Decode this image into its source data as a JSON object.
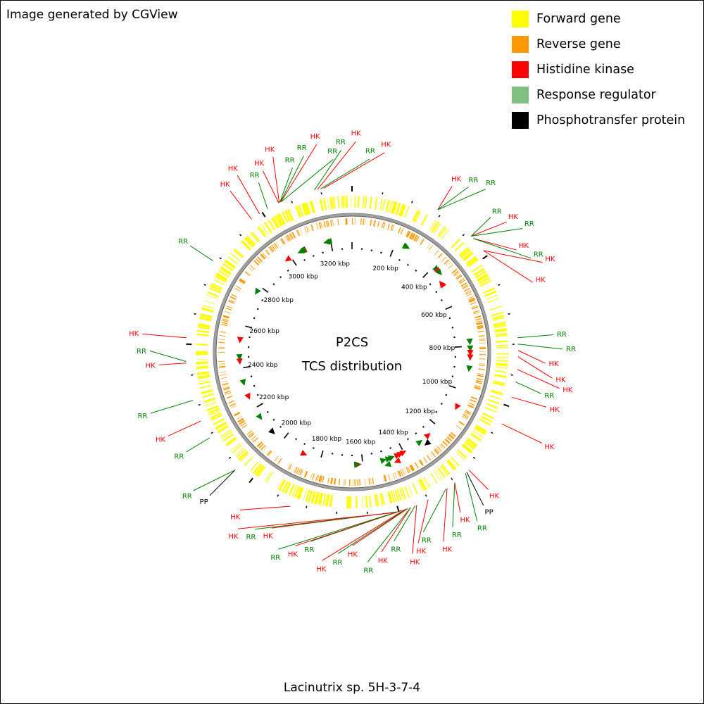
{
  "credit": "Image generated by CGView",
  "legend": [
    {
      "label": "Forward gene",
      "color": "#ffff00"
    },
    {
      "label": "Reverse gene",
      "color": "#ff9900"
    },
    {
      "label": "Histidine kinase",
      "color": "#ff0000"
    },
    {
      "label": "Response regulator",
      "color": "#7fbf7f"
    },
    {
      "label": "Phosphotransfer protein",
      "color": "#000000"
    }
  ],
  "center_title": "P2CS",
  "center_subtitle": "TCS distribution",
  "organism": "Lacinutrix sp. 5H-3-7-4",
  "genome": {
    "length_kbp": 3300,
    "ticks": [
      {
        "label": "200 kbp",
        "kbp": 200
      },
      {
        "label": "400 kbp",
        "kbp": 400
      },
      {
        "label": "600 kbp",
        "kbp": 600
      },
      {
        "label": "800 kbp",
        "kbp": 800
      },
      {
        "label": "1000 kbp",
        "kbp": 1000
      },
      {
        "label": "1200 kbp",
        "kbp": 1200
      },
      {
        "label": "1400 kbp",
        "kbp": 1400
      },
      {
        "label": "1600 kbp",
        "kbp": 1600
      },
      {
        "label": "1800 kbp",
        "kbp": 1800
      },
      {
        "label": "2000 kbp",
        "kbp": 2000
      },
      {
        "label": "2200 kbp",
        "kbp": 2200
      },
      {
        "label": "2400 kbp",
        "kbp": 2400
      },
      {
        "label": "2600 kbp",
        "kbp": 2600
      },
      {
        "label": "2800 kbp",
        "kbp": 2800
      },
      {
        "label": "3000 kbp",
        "kbp": 3000
      },
      {
        "label": "3200 kbp",
        "kbp": 3200
      }
    ]
  },
  "type_colors": {
    "HK": "#ff0000",
    "RR": "#008000",
    "PP": "#000000"
  },
  "tcs_labels": [
    {
      "text": "HK",
      "type": "HK",
      "kbp": 285
    },
    {
      "text": "RR",
      "type": "RR",
      "kbp": 285
    },
    {
      "text": "RR",
      "type": "RR",
      "kbp": 285
    },
    {
      "text": "RR",
      "type": "RR",
      "kbp": 420
    },
    {
      "text": "HK",
      "type": "HK",
      "kbp": 420
    },
    {
      "text": "RR",
      "type": "RR",
      "kbp": 420
    },
    {
      "text": "HK",
      "type": "HK",
      "kbp": 430
    },
    {
      "text": "RR",
      "type": "RR",
      "kbp": 430
    },
    {
      "text": "HK",
      "type": "HK",
      "kbp": 480
    },
    {
      "text": "HK",
      "type": "HK",
      "kbp": 480
    },
    {
      "text": "RR",
      "type": "RR",
      "kbp": 780
    },
    {
      "text": "RR",
      "type": "RR",
      "kbp": 800
    },
    {
      "text": "HK",
      "type": "HK",
      "kbp": 820
    },
    {
      "text": "HK",
      "type": "HK",
      "kbp": 840
    },
    {
      "text": "HK",
      "type": "HK",
      "kbp": 880
    },
    {
      "text": "RR",
      "type": "RR",
      "kbp": 920
    },
    {
      "text": "HK",
      "type": "HK",
      "kbp": 970
    },
    {
      "text": "HK",
      "type": "HK",
      "kbp": 1060
    },
    {
      "text": "HK",
      "type": "HK",
      "kbp": 1240
    },
    {
      "text": "PP",
      "type": "PP",
      "kbp": 1250
    },
    {
      "text": "RR",
      "type": "RR",
      "kbp": 1255
    },
    {
      "text": "HK",
      "type": "HK",
      "kbp": 1300
    },
    {
      "text": "RR",
      "type": "RR",
      "kbp": 1300
    },
    {
      "text": "HK",
      "type": "HK",
      "kbp": 1330
    },
    {
      "text": "RR",
      "type": "RR",
      "kbp": 1335
    },
    {
      "text": "HK",
      "type": "HK",
      "kbp": 1400
    },
    {
      "text": "HK",
      "type": "HK",
      "kbp": 1440
    },
    {
      "text": "RR",
      "type": "RR",
      "kbp": 1445
    },
    {
      "text": "HK",
      "type": "HK",
      "kbp": 1460
    },
    {
      "text": "RR",
      "type": "RR",
      "kbp": 1460
    },
    {
      "text": "HK",
      "type": "HK",
      "kbp": 1470
    },
    {
      "text": "RR",
      "type": "RR",
      "kbp": 1475
    },
    {
      "text": "HK",
      "type": "HK",
      "kbp": 1480
    },
    {
      "text": "RR",
      "type": "RR",
      "kbp": 1490
    },
    {
      "text": "HK",
      "type": "HK",
      "kbp": 1495
    },
    {
      "text": "RR",
      "type": "RR",
      "kbp": 1500
    },
    {
      "text": "HK",
      "type": "HK",
      "kbp": 1505
    },
    {
      "text": "RR",
      "type": "RR",
      "kbp": 1510
    },
    {
      "text": "HK",
      "type": "HK",
      "kbp": 1515
    },
    {
      "text": "HK",
      "type": "HK",
      "kbp": 1850
    },
    {
      "text": "PP",
      "type": "PP",
      "kbp": 2060
    },
    {
      "text": "RR",
      "type": "RR",
      "kbp": 2060
    },
    {
      "text": "RR",
      "type": "RR",
      "kbp": 2190
    },
    {
      "text": "HK",
      "type": "HK",
      "kbp": 2250
    },
    {
      "text": "RR",
      "type": "RR",
      "kbp": 2320
    },
    {
      "text": "HK",
      "type": "HK",
      "kbp": 2440
    },
    {
      "text": "RR",
      "type": "RR",
      "kbp": 2445
    },
    {
      "text": "HK",
      "type": "HK",
      "kbp": 2520
    },
    {
      "text": "RR",
      "type": "RR",
      "kbp": 2780
    },
    {
      "text": "HK",
      "type": "HK",
      "kbp": 2960
    },
    {
      "text": "HK",
      "type": "HK",
      "kbp": 2990
    },
    {
      "text": "RR",
      "type": "RR",
      "kbp": 3020
    },
    {
      "text": "HK",
      "type": "HK",
      "kbp": 3060
    },
    {
      "text": "HK",
      "type": "HK",
      "kbp": 3062
    },
    {
      "text": "RR",
      "type": "RR",
      "kbp": 3064
    },
    {
      "text": "RR",
      "type": "RR",
      "kbp": 3066
    },
    {
      "text": "HK",
      "type": "HK",
      "kbp": 3068
    },
    {
      "text": "RR",
      "type": "RR",
      "kbp": 3070
    },
    {
      "text": "RR",
      "type": "RR",
      "kbp": 3180
    },
    {
      "text": "HK",
      "type": "HK",
      "kbp": 3190
    },
    {
      "text": "RR",
      "type": "RR",
      "kbp": 3200
    },
    {
      "text": "HK",
      "type": "HK",
      "kbp": 3210
    }
  ],
  "tcs_markers": [
    {
      "type": "RR",
      "kbp": 250,
      "strand": "+"
    },
    {
      "type": "RR",
      "kbp": 255,
      "strand": "+"
    },
    {
      "type": "RR",
      "kbp": 420,
      "strand": "+"
    },
    {
      "type": "HK",
      "kbp": 430,
      "strand": "+"
    },
    {
      "type": "RR",
      "kbp": 440,
      "strand": "+"
    },
    {
      "type": "HK",
      "kbp": 480,
      "strand": "-"
    },
    {
      "type": "HK",
      "kbp": 485,
      "strand": "-"
    },
    {
      "type": "RR",
      "kbp": 780,
      "strand": "+"
    },
    {
      "type": "RR",
      "kbp": 810,
      "strand": "+"
    },
    {
      "type": "HK",
      "kbp": 830,
      "strand": "+"
    },
    {
      "type": "HK",
      "kbp": 850,
      "strand": "+"
    },
    {
      "type": "RR",
      "kbp": 900,
      "strand": "+"
    },
    {
      "type": "HK",
      "kbp": 1080,
      "strand": "+"
    },
    {
      "type": "PP",
      "kbp": 1290,
      "strand": "+"
    },
    {
      "type": "RR",
      "kbp": 1310,
      "strand": "-"
    },
    {
      "type": "HK",
      "kbp": 1260,
      "strand": "-"
    },
    {
      "type": "HK",
      "kbp": 1400,
      "strand": "-"
    },
    {
      "type": "HK",
      "kbp": 1415,
      "strand": "-"
    },
    {
      "type": "HK",
      "kbp": 1430,
      "strand": "-"
    },
    {
      "type": "HK",
      "kbp": 1445,
      "strand": "+"
    },
    {
      "type": "RR",
      "kbp": 1460,
      "strand": "-"
    },
    {
      "type": "RR",
      "kbp": 1475,
      "strand": "-"
    },
    {
      "type": "RR",
      "kbp": 1490,
      "strand": "+"
    },
    {
      "type": "RR",
      "kbp": 1500,
      "strand": "-"
    },
    {
      "type": "HK",
      "kbp": 1620,
      "strand": "-"
    },
    {
      "type": "RR",
      "kbp": 1625,
      "strand": "-"
    },
    {
      "type": "HK",
      "kbp": 1880,
      "strand": "-"
    },
    {
      "type": "PP",
      "kbp": 2060,
      "strand": "-"
    },
    {
      "type": "RR",
      "kbp": 2150,
      "strand": "-"
    },
    {
      "type": "HK",
      "kbp": 2260,
      "strand": "-"
    },
    {
      "type": "RR",
      "kbp": 2330,
      "strand": "-"
    },
    {
      "type": "HK",
      "kbp": 2430,
      "strand": "-"
    },
    {
      "type": "RR",
      "kbp": 2450,
      "strand": "-"
    },
    {
      "type": "HK",
      "kbp": 2530,
      "strand": "-"
    },
    {
      "type": "RR",
      "kbp": 2770,
      "strand": "-"
    },
    {
      "type": "HK",
      "kbp": 2980,
      "strand": "-"
    },
    {
      "type": "HK",
      "kbp": 3055,
      "strand": "-"
    },
    {
      "type": "HK",
      "kbp": 3060,
      "strand": "-"
    },
    {
      "type": "HK",
      "kbp": 3065,
      "strand": "-"
    },
    {
      "type": "RR",
      "kbp": 3050,
      "strand": "-"
    },
    {
      "type": "RR",
      "kbp": 3056,
      "strand": "-"
    },
    {
      "type": "RR",
      "kbp": 3062,
      "strand": "-"
    },
    {
      "type": "HK",
      "kbp": 3180,
      "strand": "-"
    },
    {
      "type": "HK",
      "kbp": 3190,
      "strand": "-"
    },
    {
      "type": "RR",
      "kbp": 3180,
      "strand": "-"
    },
    {
      "type": "RR",
      "kbp": 3190,
      "strand": "-"
    }
  ]
}
